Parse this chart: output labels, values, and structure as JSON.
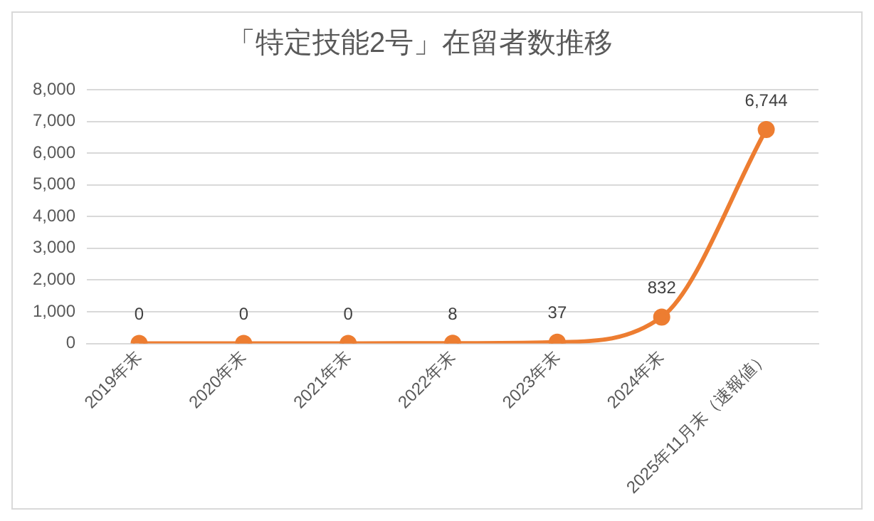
{
  "chart_data": {
    "type": "line",
    "title": "「特定技能2号」在留者数推移",
    "categories": [
      "2019年末",
      "2020年末",
      "2021年末",
      "2022年末",
      "2023年末",
      "2024年末",
      "2025年11月末（速報値）"
    ],
    "series": [
      {
        "color": "#ed7d31",
        "values": [
          0,
          0,
          0,
          8,
          37,
          832,
          6744
        ],
        "value_labels": [
          "0",
          "0",
          "0",
          "8",
          "37",
          "832",
          "6,744"
        ]
      }
    ],
    "ylim": [
      0,
      8000
    ],
    "yticks": [
      {
        "value": 0,
        "label": "0"
      },
      {
        "value": 1000,
        "label": "1,000"
      },
      {
        "value": 2000,
        "label": "2,000"
      },
      {
        "value": 3000,
        "label": "3,000"
      },
      {
        "value": 4000,
        "label": "4,000"
      },
      {
        "value": 5000,
        "label": "5,000"
      },
      {
        "value": 6000,
        "label": "6,000"
      },
      {
        "value": 7000,
        "label": "7,000"
      },
      {
        "value": 8000,
        "label": "8,000"
      }
    ],
    "grid": "y",
    "legend": false,
    "marker": "circle",
    "line_style": "solid"
  }
}
